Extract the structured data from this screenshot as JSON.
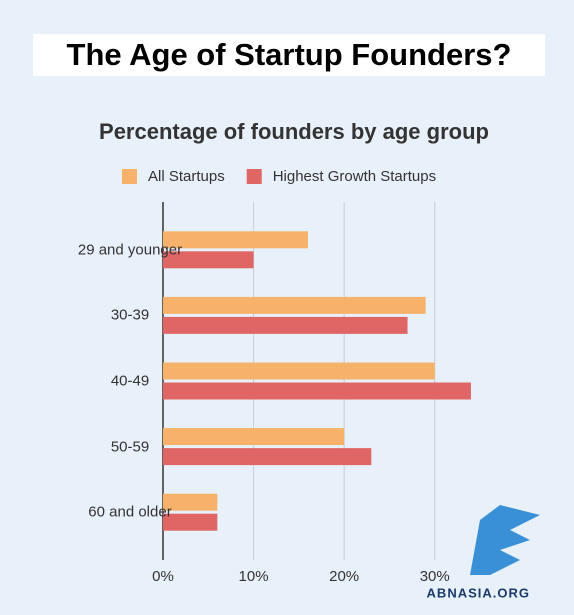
{
  "banner_title": "The Age of Startup Founders?",
  "watermark": "ABNASIA.ORG",
  "chart_data": {
    "type": "hbar",
    "title": "Percentage of founders by age group",
    "categories": [
      "29 and younger",
      "30-39",
      "40-49",
      "50-59",
      "60 and older"
    ],
    "series": [
      {
        "name": "All Startups",
        "color": "#f6b26b",
        "values": [
          16,
          29,
          30,
          20,
          6
        ]
      },
      {
        "name": "Highest Growth Startups",
        "color": "#e06666",
        "values": [
          10,
          27,
          34,
          23,
          6
        ]
      }
    ],
    "xlim": [
      0,
      35
    ],
    "xticks": [
      {
        "value": 0,
        "label": "0%"
      },
      {
        "value": 10,
        "label": "10%"
      },
      {
        "value": 20,
        "label": "20%"
      },
      {
        "value": 30,
        "label": "30%"
      }
    ],
    "grid": true,
    "legend": "top"
  }
}
